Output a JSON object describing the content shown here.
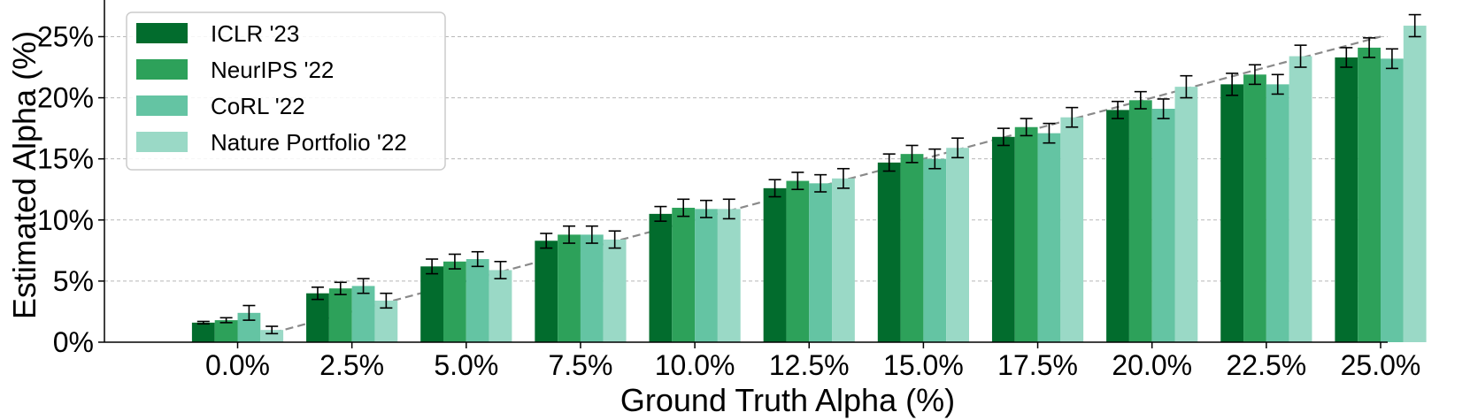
{
  "chart_data": {
    "type": "bar",
    "xlabel": "Ground Truth Alpha (%)",
    "ylabel": "Estimated Alpha (%)",
    "categories": [
      "0.0%",
      "2.5%",
      "5.0%",
      "7.5%",
      "10.0%",
      "12.5%",
      "15.0%",
      "17.5%",
      "20.0%",
      "22.5%",
      "25.0%"
    ],
    "ground_truth": [
      0,
      2.5,
      5.0,
      7.5,
      10.0,
      12.5,
      15.0,
      17.5,
      20.0,
      22.5,
      25.0
    ],
    "yticks": [
      "0%",
      "5%",
      "10%",
      "15%",
      "20%",
      "25%"
    ],
    "ytick_values": [
      0,
      5,
      10,
      15,
      20,
      25
    ],
    "ylim": [
      0,
      28
    ],
    "grid": "horizontal dashed",
    "legend_position": "top-left",
    "reference_line": "dashed y = x",
    "series": [
      {
        "name": "ICLR '23",
        "color": "#026c2d",
        "values": [
          1.6,
          4.0,
          6.2,
          8.3,
          10.5,
          12.6,
          14.7,
          16.8,
          19.0,
          21.1,
          23.3
        ],
        "errors": [
          0.1,
          0.5,
          0.6,
          0.6,
          0.6,
          0.7,
          0.7,
          0.7,
          0.7,
          0.9,
          0.8
        ]
      },
      {
        "name": "NeurIPS '22",
        "color": "#2da15a",
        "values": [
          1.8,
          4.4,
          6.6,
          8.8,
          11.0,
          13.2,
          15.4,
          17.6,
          19.8,
          21.9,
          24.1
        ],
        "errors": [
          0.2,
          0.5,
          0.6,
          0.7,
          0.7,
          0.7,
          0.7,
          0.7,
          0.7,
          0.8,
          0.8
        ]
      },
      {
        "name": "CoRL '22",
        "color": "#64c4a3",
        "values": [
          2.4,
          4.6,
          6.8,
          8.8,
          10.9,
          13.0,
          15.0,
          17.1,
          19.1,
          21.1,
          23.2
        ],
        "errors": [
          0.6,
          0.6,
          0.6,
          0.7,
          0.7,
          0.7,
          0.8,
          0.8,
          0.8,
          0.8,
          0.8
        ]
      },
      {
        "name": "Nature Portfolio '22",
        "color": "#9ad9c6",
        "values": [
          1.0,
          3.4,
          5.9,
          8.4,
          10.9,
          13.4,
          15.9,
          18.4,
          20.9,
          23.4,
          25.9
        ],
        "errors": [
          0.3,
          0.6,
          0.7,
          0.7,
          0.8,
          0.8,
          0.8,
          0.8,
          0.9,
          0.9,
          0.9
        ]
      }
    ]
  }
}
